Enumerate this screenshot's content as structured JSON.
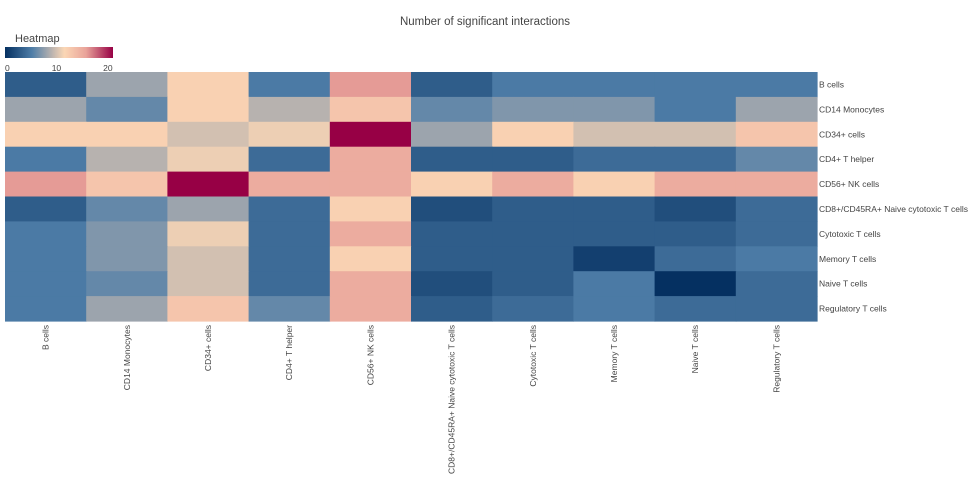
{
  "chart_data": {
    "type": "heatmap",
    "title": "Number of significant interactions",
    "legend": {
      "title": "Heatmap",
      "ticks": [
        0,
        10,
        20
      ],
      "range": [
        0,
        21
      ],
      "placement": "top-left"
    },
    "colorscale": [
      [
        0.0,
        "#053061"
      ],
      [
        0.25,
        "#4f7ea8"
      ],
      [
        0.45,
        "#c4b8b0"
      ],
      [
        0.55,
        "#fbd7b5"
      ],
      [
        0.75,
        "#e9a39a"
      ],
      [
        1.0,
        "#970045"
      ]
    ],
    "x_categories": [
      "B cells",
      "CD14 Monocytes",
      "CD34+ cells",
      "CD4+ T helper",
      "CD56+ NK cells",
      "CD8+/CD45RA+ Naive cytotoxic T cells",
      "Cytotoxic T cells",
      "Memory T cells",
      "Naive T cells",
      "Regulatory T cells"
    ],
    "y_categories": [
      "B cells",
      "CD14 Monocytes",
      "CD34+ cells",
      "CD4+ T helper",
      "CD56+ NK cells",
      "CD8+/CD45RA+ Naive cytotoxic T cells",
      "Cytotoxic T cells",
      "Memory T cells",
      "Naive T cells",
      "Regulatory T cells"
    ],
    "z": [
      [
        3,
        8,
        12,
        5,
        16,
        3,
        5,
        5,
        5,
        5
      ],
      [
        8,
        6,
        12,
        9,
        13,
        6,
        7,
        7,
        5,
        8
      ],
      [
        12,
        12,
        10,
        11,
        21,
        8,
        12,
        10,
        10,
        13
      ],
      [
        5,
        9,
        11,
        4,
        15,
        3,
        3,
        4,
        4,
        6
      ],
      [
        16,
        13,
        21,
        15,
        15,
        12,
        15,
        12,
        15,
        15
      ],
      [
        3,
        6,
        8,
        4,
        12,
        2,
        3,
        3,
        2,
        4
      ],
      [
        5,
        7,
        11,
        4,
        15,
        3,
        3,
        3,
        3,
        4
      ],
      [
        5,
        7,
        10,
        4,
        12,
        3,
        3,
        1,
        4,
        5
      ],
      [
        5,
        6,
        10,
        4,
        15,
        2,
        3,
        5,
        0,
        4
      ],
      [
        5,
        8,
        13,
        6,
        15,
        3,
        4,
        5,
        4,
        4
      ]
    ]
  }
}
